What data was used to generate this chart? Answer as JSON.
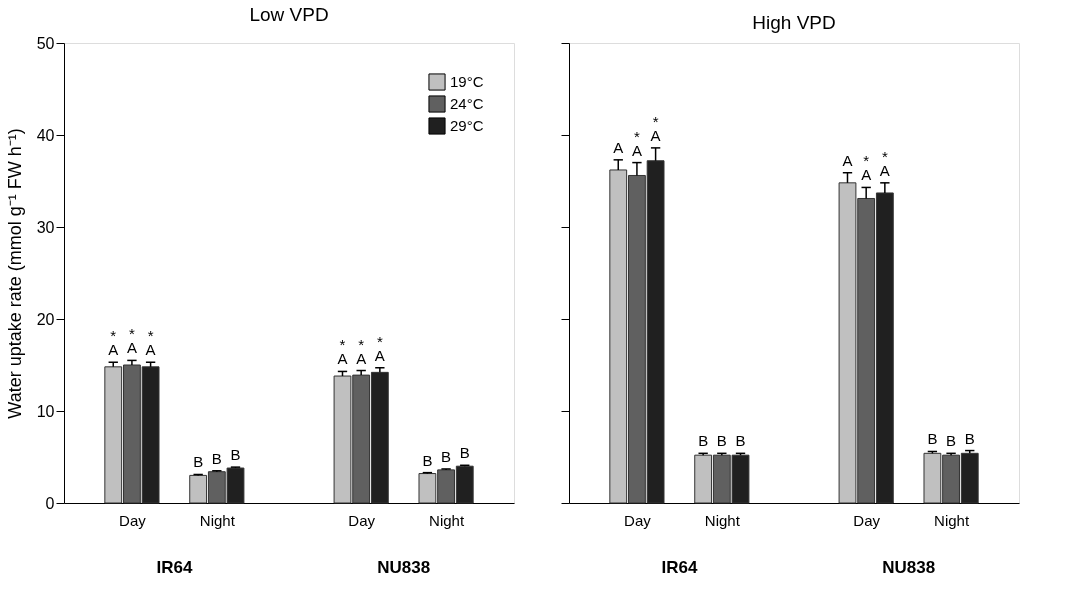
{
  "chart_data": [
    {
      "type": "bar",
      "title": "Low VPD",
      "ylabel": "Water uptake rate (mmol g⁻¹ FW h⁻¹)",
      "categories": [
        "Day",
        "Night",
        "Day",
        "Night"
      ],
      "ylim": [
        0,
        50
      ],
      "yticks": [
        0,
        10,
        20,
        30,
        40,
        50
      ],
      "legend": "top right",
      "annotations": [
        "IR64",
        "NU838"
      ],
      "series": [
        {
          "name": "19°C",
          "color": "#c0c0c0",
          "values": [
            14.8,
            3.0,
            13.8,
            3.2
          ],
          "errors": [
            0.5,
            0.1,
            0.5,
            0.1
          ],
          "value_labels": [
            "*\nA",
            "B",
            "*\nA",
            "B"
          ]
        },
        {
          "name": "24°C",
          "color": "#606060",
          "values": [
            15.0,
            3.4,
            13.9,
            3.6
          ],
          "errors": [
            0.5,
            0.1,
            0.5,
            0.1
          ],
          "value_labels": [
            "*\nA",
            "B",
            "*\nA",
            "B"
          ]
        },
        {
          "name": "29°C",
          "color": "#202020",
          "values": [
            14.8,
            3.8,
            14.2,
            4.0
          ],
          "errors": [
            0.5,
            0.1,
            0.5,
            0.1
          ],
          "value_labels": [
            "*\nA",
            "B",
            "*\nA",
            "B"
          ]
        }
      ]
    },
    {
      "type": "bar",
      "title": "High VPD",
      "categories": [
        "Day",
        "Night",
        "Day",
        "Night"
      ],
      "ylim": [
        0,
        50
      ],
      "yticks": [
        0,
        10,
        20,
        30,
        40,
        50
      ],
      "tick_labels": "x",
      "annotations": [
        "IR64",
        "NU838"
      ],
      "series": [
        {
          "color": "#c0c0c0",
          "values": [
            36.2,
            5.2,
            34.8,
            5.4
          ],
          "errors": [
            1.1,
            0.2,
            1.1,
            0.2
          ],
          "value_labels": [
            "A",
            "B",
            "A",
            "B"
          ]
        },
        {
          "color": "#606060",
          "values": [
            35.6,
            5.2,
            33.1,
            5.2
          ],
          "errors": [
            1.4,
            0.2,
            1.2,
            0.2
          ],
          "value_labels": [
            "*\nA",
            "B",
            "*\nA",
            "B"
          ]
        },
        {
          "color": "#202020",
          "values": [
            37.2,
            5.2,
            33.7,
            5.4
          ],
          "errors": [
            1.4,
            0.2,
            1.1,
            0.3
          ],
          "value_labels": [
            "*\nA",
            "B",
            "*\nA",
            "B"
          ]
        }
      ]
    }
  ]
}
